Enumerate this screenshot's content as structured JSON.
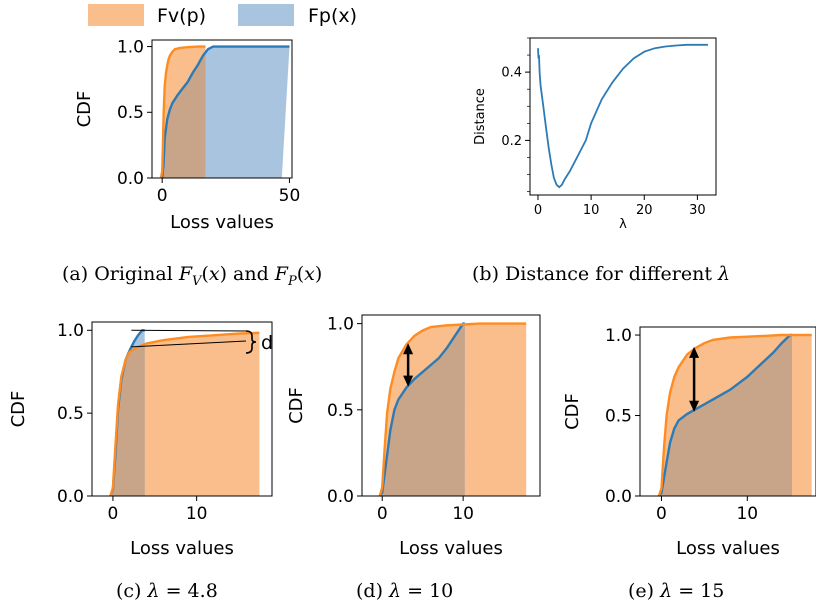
{
  "legend": {
    "entries": [
      {
        "label": "Fv(p)",
        "color": "#f9be8b"
      },
      {
        "label": "Fp(x)",
        "color": "#a9c4df"
      }
    ]
  },
  "colors": {
    "orange_line": "#ff8c22",
    "blue_line": "#2c7bb6",
    "orange_fill": "#f9be8b",
    "blue_fill": "#a9c4df",
    "overlap_fill": "#c8a488"
  },
  "captions": {
    "a": "(a) Original F_V(x) and F_P(x)",
    "b": "(b) Distance for different λ",
    "c": "(c) λ = 4.8",
    "d": "(d) λ = 10",
    "e": "(e) λ = 15"
  },
  "annotation_d": "d",
  "chart_data": [
    {
      "id": "a",
      "type": "area",
      "xlabel": "Loss values",
      "ylabel": "CDF",
      "xlim": [
        -4,
        51
      ],
      "ylim": [
        0,
        1.05
      ],
      "xticks": [
        0,
        50
      ],
      "yticks": [
        0.0,
        0.5,
        1.0
      ],
      "xtick_labels": [
        "0",
        "50"
      ],
      "ytick_labels": [
        "0.0",
        "0.5",
        "1.0"
      ],
      "series": [
        {
          "name": "Fv(p)",
          "fill_to": 17,
          "x": [
            -0.5,
            0,
            0.3,
            0.6,
            1,
            1.5,
            2,
            2.5,
            3,
            4,
            5,
            7,
            10,
            14,
            17
          ],
          "y": [
            0,
            0.05,
            0.25,
            0.5,
            0.7,
            0.8,
            0.86,
            0.9,
            0.93,
            0.96,
            0.98,
            0.99,
            0.995,
            1.0,
            1.0
          ]
        },
        {
          "name": "Fp(x)",
          "fill_to": 47,
          "x": [
            0,
            0.5,
            1,
            2,
            3,
            4,
            6,
            8,
            10,
            12,
            14,
            16,
            18,
            20,
            24,
            30,
            40,
            50
          ],
          "y": [
            0,
            0.1,
            0.3,
            0.45,
            0.52,
            0.57,
            0.63,
            0.68,
            0.73,
            0.8,
            0.86,
            0.93,
            0.98,
            1.0,
            1.0,
            1.0,
            1.0,
            1.0
          ]
        }
      ]
    },
    {
      "id": "b",
      "type": "line",
      "xlabel": "λ",
      "ylabel": "Distance",
      "xlim": [
        -1.5,
        33.5
      ],
      "ylim": [
        0.04,
        0.5
      ],
      "xticks": [
        0,
        10,
        20,
        30
      ],
      "yticks": [
        0.2,
        0.4
      ],
      "xtick_labels": [
        "0",
        "10",
        "20",
        "30"
      ],
      "ytick_labels": [
        "0.2",
        "0.4"
      ],
      "series": [
        {
          "x": [
            0,
            0.1,
            0.2,
            0.3,
            0.5,
            1,
            1.5,
            2,
            2.5,
            3,
            3.5,
            4,
            4.5,
            5,
            6,
            7,
            8,
            9,
            10,
            12,
            14,
            16,
            18,
            20,
            22,
            24,
            26,
            28,
            30,
            32
          ],
          "y": [
            0.47,
            0.44,
            0.45,
            0.4,
            0.36,
            0.3,
            0.24,
            0.18,
            0.13,
            0.09,
            0.07,
            0.063,
            0.07,
            0.085,
            0.11,
            0.14,
            0.17,
            0.2,
            0.25,
            0.32,
            0.37,
            0.41,
            0.44,
            0.46,
            0.47,
            0.475,
            0.478,
            0.48,
            0.48,
            0.48
          ]
        }
      ]
    },
    {
      "id": "c",
      "type": "area",
      "xlabel": "Loss values",
      "ylabel": "CDF",
      "xlim": [
        -2.5,
        19
      ],
      "ylim": [
        0,
        1.05
      ],
      "xticks": [
        0,
        10
      ],
      "yticks": [
        0.0,
        0.5,
        1.0
      ],
      "xtick_labels": [
        "0",
        "10"
      ],
      "ytick_labels": [
        "0.0",
        "0.5",
        "1.0"
      ],
      "series": [
        {
          "name": "Fv(p)",
          "fill_to": 17.5,
          "x": [
            -0.3,
            0,
            0.3,
            0.6,
            1,
            1.5,
            2,
            3,
            4,
            6,
            9,
            12,
            15,
            17.5
          ],
          "y": [
            0,
            0.05,
            0.3,
            0.55,
            0.72,
            0.82,
            0.87,
            0.9,
            0.92,
            0.94,
            0.96,
            0.97,
            0.98,
            0.985
          ]
        },
        {
          "name": "Fp(x)",
          "fill_to": 3.8,
          "x": [
            -0.3,
            0,
            0.3,
            0.6,
            1,
            1.5,
            2,
            2.5,
            3,
            3.5,
            3.8
          ],
          "y": [
            0,
            0.04,
            0.25,
            0.52,
            0.7,
            0.82,
            0.88,
            0.93,
            0.97,
            1.0,
            1.0
          ]
        }
      ]
    },
    {
      "id": "d",
      "type": "area",
      "xlabel": "Loss values",
      "ylabel": "CDF",
      "xlim": [
        -2.5,
        19.5
      ],
      "ylim": [
        0,
        1.05
      ],
      "xticks": [
        0,
        10
      ],
      "yticks": [
        0.0,
        0.5,
        1.0
      ],
      "xtick_labels": [
        "0",
        "10"
      ],
      "ytick_labels": [
        "0.0",
        "0.5",
        "1.0"
      ],
      "series": [
        {
          "name": "Fv(p)",
          "fill_to": 17.8,
          "x": [
            -0.3,
            0,
            0.3,
            0.6,
            1,
            1.5,
            2,
            3,
            4,
            5,
            6,
            8,
            10,
            12,
            14,
            17.8
          ],
          "y": [
            0,
            0.05,
            0.28,
            0.48,
            0.62,
            0.72,
            0.8,
            0.88,
            0.93,
            0.96,
            0.98,
            0.99,
            0.995,
            1.0,
            1.0,
            1.0
          ]
        },
        {
          "name": "Fp(x)",
          "fill_to": 10.2,
          "x": [
            -0.3,
            0,
            0.5,
            1,
            1.5,
            2,
            3,
            4,
            5,
            6,
            7,
            8,
            9,
            10,
            10.2
          ],
          "y": [
            0,
            0.02,
            0.2,
            0.38,
            0.5,
            0.56,
            0.63,
            0.68,
            0.72,
            0.76,
            0.8,
            0.86,
            0.93,
            1.0,
            1.0
          ]
        }
      ],
      "arrow": {
        "x": 3.2,
        "y_from": 0.88,
        "y_to": 0.64
      }
    },
    {
      "id": "e",
      "type": "area",
      "xlabel": "Loss values",
      "ylabel": "CDF",
      "xlim": [
        -2.5,
        18
      ],
      "ylim": [
        0,
        1.05
      ],
      "xticks": [
        0,
        10
      ],
      "yticks": [
        0.0,
        0.5,
        1.0
      ],
      "xtick_labels": [
        "0",
        "10"
      ],
      "ytick_labels": [
        "0.0",
        "0.5",
        "1.0"
      ],
      "series": [
        {
          "name": "Fv(p)",
          "fill_to": 17.5,
          "x": [
            -0.3,
            0,
            0.3,
            0.6,
            1,
            1.5,
            2,
            3,
            4,
            5,
            6,
            8,
            10,
            12,
            14,
            17.5
          ],
          "y": [
            0,
            0.05,
            0.3,
            0.5,
            0.64,
            0.74,
            0.8,
            0.88,
            0.92,
            0.95,
            0.97,
            0.985,
            0.99,
            0.995,
            1.0,
            1.0
          ]
        },
        {
          "name": "Fp(x)",
          "fill_to": 15.2,
          "x": [
            -0.3,
            0,
            0.5,
            1,
            1.5,
            2,
            3,
            4,
            5,
            6,
            7,
            8,
            9,
            10,
            11,
            12,
            13,
            14,
            15,
            15.2
          ],
          "y": [
            0,
            0.02,
            0.18,
            0.33,
            0.42,
            0.47,
            0.51,
            0.54,
            0.57,
            0.6,
            0.63,
            0.66,
            0.7,
            0.74,
            0.79,
            0.84,
            0.89,
            0.95,
            1.0,
            1.0
          ]
        }
      ],
      "arrow": {
        "x": 3.8,
        "y_from": 0.92,
        "y_to": 0.53
      }
    }
  ]
}
